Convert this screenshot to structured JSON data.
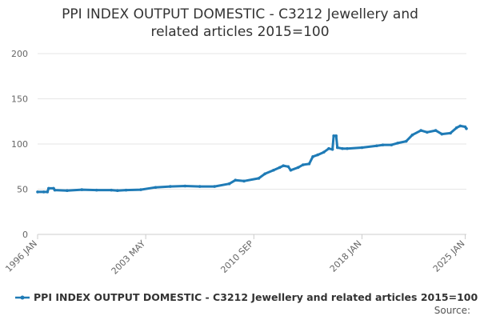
{
  "chart_data": {
    "type": "line",
    "title_lines": [
      "PPI INDEX OUTPUT DOMESTIC - C3212 Jewellery and",
      "related articles 2015=100"
    ],
    "xlabel": "",
    "ylabel": "",
    "ylim": [
      0,
      200
    ],
    "y_ticks": [
      "0",
      "50",
      "100",
      "150",
      "200"
    ],
    "x_tick_labels": [
      "1996 JAN",
      "2003 MAY",
      "2010 SEP",
      "2018 JAN",
      "2025 JAN"
    ],
    "x_tick_dates": [
      "1996-01",
      "2003-05",
      "2010-09",
      "2018-01",
      "2025-01"
    ],
    "x_range": [
      "1996-01",
      "2025-02"
    ],
    "grid": true,
    "legend_position": "bottom",
    "series": [
      {
        "name": "PPI INDEX OUTPUT DOMESTIC - C3212 Jewellery and related articles 2015=100",
        "color": "#1f7bb6",
        "points": [
          [
            "1996-01",
            47
          ],
          [
            "1996-06",
            47
          ],
          [
            "1996-09",
            47
          ],
          [
            "1996-10",
            51
          ],
          [
            "1997-02",
            51
          ],
          [
            "1997-03",
            49
          ],
          [
            "1998-01",
            48.5
          ],
          [
            "1999-01",
            49.5
          ],
          [
            "2000-01",
            49
          ],
          [
            "2001-01",
            49
          ],
          [
            "2001-06",
            48.5
          ],
          [
            "2002-01",
            49
          ],
          [
            "2003-01",
            49.5
          ],
          [
            "2004-01",
            52
          ],
          [
            "2005-01",
            53
          ],
          [
            "2006-01",
            53.5
          ],
          [
            "2007-01",
            53
          ],
          [
            "2008-01",
            53
          ],
          [
            "2009-01",
            56
          ],
          [
            "2009-06",
            60
          ],
          [
            "2010-01",
            59
          ],
          [
            "2011-01",
            62
          ],
          [
            "2011-06",
            67
          ],
          [
            "2012-01",
            71
          ],
          [
            "2012-06",
            74
          ],
          [
            "2012-09",
            76
          ],
          [
            "2013-01",
            75
          ],
          [
            "2013-03",
            71
          ],
          [
            "2013-09",
            74
          ],
          [
            "2014-01",
            77
          ],
          [
            "2014-06",
            78
          ],
          [
            "2014-09",
            86
          ],
          [
            "2015-01",
            88
          ],
          [
            "2015-06",
            91
          ],
          [
            "2015-10",
            95
          ],
          [
            "2016-01",
            94
          ],
          [
            "2016-02",
            109
          ],
          [
            "2016-04",
            109
          ],
          [
            "2016-05",
            96
          ],
          [
            "2016-09",
            95
          ],
          [
            "2017-01",
            95
          ],
          [
            "2018-01",
            96
          ],
          [
            "2019-01",
            98
          ],
          [
            "2019-06",
            99
          ],
          [
            "2020-01",
            99
          ],
          [
            "2020-06",
            101
          ],
          [
            "2021-01",
            103
          ],
          [
            "2021-06",
            110
          ],
          [
            "2022-01",
            115
          ],
          [
            "2022-06",
            113
          ],
          [
            "2023-01",
            115
          ],
          [
            "2023-06",
            111
          ],
          [
            "2024-01",
            112
          ],
          [
            "2024-06",
            118
          ],
          [
            "2024-09",
            120
          ],
          [
            "2025-01",
            119
          ],
          [
            "2025-02",
            117
          ]
        ]
      }
    ],
    "source_label": "Source:"
  }
}
